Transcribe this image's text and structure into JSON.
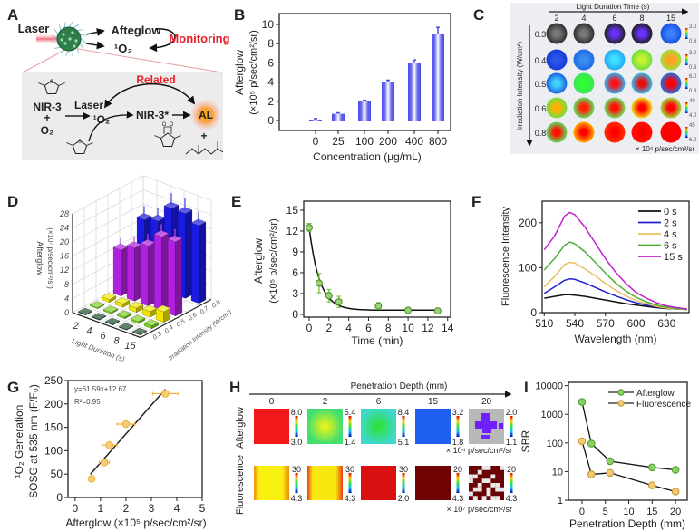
{
  "panel_labels": [
    "A",
    "B",
    "C",
    "D",
    "E",
    "F",
    "G",
    "H",
    "I"
  ],
  "schematic": {
    "laser": "Laser",
    "afterglow": "Afteglow",
    "singlet_oxygen": "¹O₂",
    "monitoring": "Monitoring",
    "related": "Related",
    "nir3": "NIR-3",
    "plus": "+",
    "oxygen": "O₂",
    "laser2": "Laser",
    "singlet_oxygen2": "¹O₂",
    "nir3_star": "NIR-3*",
    "al": "AL",
    "plus2": "+",
    "sulfur": "S",
    "oxygen_atom": "O",
    "accent_red": "#e8202a",
    "nanoparticle_color": "#2f7d4a"
  },
  "chart_data": [
    {
      "panel": "B",
      "type": "bar",
      "categories": [
        "0",
        "25",
        "100",
        "200",
        "400",
        "800"
      ],
      "values": [
        0.1,
        0.7,
        2.0,
        4.0,
        6.0,
        9.0
      ],
      "errors": [
        0.1,
        0.1,
        0.1,
        0.2,
        0.3,
        0.7
      ],
      "ylabel": "Afterglow",
      "ylabel_unit": "(×10⁵ p/sec/cm²/sr)",
      "xlabel": "Concentration (μg/mL)",
      "ylim": [
        -1,
        11.1
      ],
      "yticks": [
        "0",
        "2",
        "4",
        "6",
        "8",
        "10"
      ],
      "color": "#4a4ae8"
    },
    {
      "panel": "C",
      "type": "heatmap",
      "xlabel": "Light Duration Time (s)",
      "columns": [
        "2",
        "4",
        "6",
        "8",
        "15"
      ],
      "ylabel": "Irradiation Intensity (W/cm²)",
      "rows": [
        "0.3",
        "0.4",
        "0.5",
        "0.6",
        "0.8"
      ],
      "colorbar_ranges": [
        [
          "3.0",
          "0.6"
        ],
        [
          "3.0",
          "0.6"
        ],
        [
          "6.0",
          "0.3"
        ],
        [
          "40",
          "4.0"
        ],
        [
          "45",
          "6.0"
        ]
      ],
      "unit": "× 10⁴ p/sec/cm²/sr",
      "cell_colors": [
        [
          [
            "#2e2e2e",
            "#777777"
          ],
          [
            "#2e2e2e",
            "#777777"
          ],
          [
            "#222222",
            "#6a30ff"
          ],
          [
            "#1e1e1e",
            "#6a30ff"
          ],
          [
            "#1a4fe0",
            "#3a80ff"
          ]
        ],
        [
          [
            "#1a3ad8",
            "#2a55e8"
          ],
          [
            "#1f6ae8",
            "#3a8cf0"
          ],
          [
            "#20a8f0",
            "#40e0ff"
          ],
          [
            "#6ce040",
            "#c8f030"
          ],
          [
            "#a0e040",
            "#ffa020"
          ]
        ],
        [
          [
            "#1a60e0",
            "#40d0ff"
          ],
          [
            "#40e060",
            "#30ff30"
          ],
          [
            "#30b0f0",
            "#ff1010"
          ],
          [
            "#30c0f0",
            "#e80c0c"
          ],
          [
            "#2070e0",
            "#ff0000"
          ]
        ],
        [
          [
            "#70e040",
            "#ffb000"
          ],
          [
            "#60e060",
            "#ff2000"
          ],
          [
            "#70e060",
            "#ff1000"
          ],
          [
            "#f0e020",
            "#ff0000"
          ],
          [
            "#a0e040",
            "#ff0000"
          ]
        ],
        [
          [
            "#60e060",
            "#ff1000"
          ],
          [
            "#ffb000",
            "#ff0000"
          ],
          [
            "#ff3000",
            "#ff0000"
          ],
          [
            "#ff1000",
            "#ff0000"
          ],
          [
            "#ff0000",
            "#ff0000"
          ]
        ]
      ]
    },
    {
      "panel": "D",
      "type": "bar3d",
      "categories": [
        "2",
        "4",
        "6",
        "8",
        "15"
      ],
      "xlabel": "Light Duration (s)",
      "depth_label": "Irradiation Intensity (W/cm²)",
      "depth_ticks": [
        "0.3",
        "0.4",
        "0.5",
        "0.6",
        "0.7",
        "0.8"
      ],
      "zlabel": "Afterglow",
      "zlabel_unit": "(×10⁷ p/sec/cm²/sr)",
      "zlim": [
        0,
        28
      ],
      "zticks": [
        "0",
        "4",
        "8",
        "12",
        "16",
        "20",
        "24",
        "28"
      ],
      "series": [
        {
          "intensity": 0.3,
          "color": "#1e4d2b",
          "values": [
            0.2,
            0.2,
            0.2,
            0.2,
            0.2
          ]
        },
        {
          "intensity": 0.4,
          "color": "#7ed321",
          "values": [
            0.3,
            0.4,
            0.5,
            0.6,
            0.8
          ]
        },
        {
          "intensity": 0.5,
          "color": "#f2e600",
          "values": [
            0.8,
            1.0,
            1.2,
            1.6,
            3.0
          ]
        },
        {
          "intensity": 0.6,
          "color": "#b020e0",
          "values": [
            13,
            15,
            17,
            21,
            21
          ],
          "errors": [
            1.0,
            1.0,
            1.0,
            1.2,
            1.2
          ]
        },
        {
          "intensity": 0.8,
          "color": "#1a1ae0",
          "values": [
            18,
            19,
            24,
            24,
            22
          ],
          "errors": [
            1.5,
            1.5,
            2.0,
            2.0,
            1.5
          ]
        }
      ]
    },
    {
      "panel": "E",
      "type": "scatter",
      "x": [
        0,
        1,
        2,
        3,
        7,
        10,
        13
      ],
      "y": [
        12.5,
        4.5,
        2.7,
        1.8,
        1.2,
        0.6,
        0.5
      ],
      "errors": [
        0.6,
        1.4,
        0.9,
        0.8,
        0.5,
        0.3,
        0.3
      ],
      "xlim": [
        -0.55,
        14.3
      ],
      "ylim": [
        -0.4,
        16.3
      ],
      "xticks": [
        "0",
        "2",
        "4",
        "6",
        "8",
        "10",
        "12",
        "14"
      ],
      "yticks": [
        "0",
        "3",
        "6",
        "9",
        "12",
        "15"
      ],
      "ylabel": "Afterglow",
      "ylabel_unit": "(×10⁵ p/sec/cm²/sr)",
      "xlabel": "Time (min)",
      "color": "#6cc23a"
    },
    {
      "panel": "F",
      "type": "line",
      "x": [
        510,
        520,
        530,
        535,
        540,
        550,
        560,
        570,
        580,
        590,
        600,
        610,
        620,
        630,
        640,
        650
      ],
      "series": [
        {
          "name": "0 s",
          "color": "#111111",
          "values": [
            32,
            36,
            40,
            40,
            39,
            36,
            32,
            28,
            24,
            20,
            17,
            14,
            11,
            9,
            8,
            7
          ]
        },
        {
          "name": "2 s",
          "color": "#1f1fd0",
          "values": [
            43,
            57,
            72,
            75,
            74,
            66,
            56,
            46,
            37,
            29,
            22,
            17,
            13,
            10,
            8,
            7
          ]
        },
        {
          "name": "4 s",
          "color": "#e8c060",
          "values": [
            57,
            80,
            107,
            112,
            110,
            97,
            82,
            65,
            50,
            37,
            27,
            20,
            14,
            10,
            8,
            7
          ]
        },
        {
          "name": "6 s",
          "color": "#4caf30",
          "values": [
            95,
            120,
            150,
            157,
            153,
            135,
            112,
            88,
            66,
            48,
            34,
            24,
            17,
            12,
            9,
            7
          ]
        },
        {
          "name": "15 s",
          "color": "#c020d0",
          "values": [
            140,
            170,
            215,
            223,
            218,
            190,
            155,
            120,
            90,
            65,
            45,
            32,
            22,
            15,
            11,
            8
          ]
        }
      ],
      "xlim": [
        508,
        652
      ],
      "ylim": [
        0,
        248
      ],
      "xticks": [
        "510",
        "540",
        "570",
        "600",
        "630"
      ],
      "yticks": [
        "0",
        "100",
        "200"
      ],
      "ylabel": "Fluorescence Intensity",
      "xlabel": "Wavelength (nm)",
      "legend": "top-right"
    },
    {
      "panel": "G",
      "type": "scatter",
      "x": [
        0.65,
        1.15,
        1.35,
        2.0,
        3.55
      ],
      "y": [
        40,
        75,
        112,
        157,
        222
      ],
      "xerr": [
        0.1,
        0.2,
        0.3,
        0.35,
        0.5
      ],
      "fit": {
        "slope": 61.59,
        "intercept": 12.67,
        "x_range": [
          0.6,
          3.55
        ]
      },
      "annotation": [
        "y=61.59x+12.67",
        "R²=0.95"
      ],
      "xlim": [
        -0.28,
        5
      ],
      "ylim": [
        0,
        250
      ],
      "xticks": [
        "0",
        "1",
        "2",
        "3",
        "4",
        "5"
      ],
      "yticks": [
        "0",
        "50",
        "100",
        "150",
        "200",
        "250"
      ],
      "ylabel": "¹O₂ Generation",
      "ylabel2": "SOSG at 535 nm (F/F₀)",
      "xlabel": "Afterglow (×10⁵ p/sec/cm²/sr)",
      "color": "#f0b030"
    },
    {
      "panel": "H",
      "type": "image_grid",
      "title": "Penetration Depth (mm)",
      "columns": [
        "0",
        "2",
        "6",
        "15",
        "20"
      ],
      "rows": [
        {
          "label": "Afterglow",
          "unit": "× 10⁴ p/sec/cm²/sr",
          "colorbar_ranges": [
            [
              "8.0",
              "3.0"
            ],
            [
              "5.4",
              "1.4"
            ],
            [
              "8.4",
              "5.1"
            ],
            [
              "3.2",
              "1.8"
            ],
            [
              "2.0",
              "1.1"
            ]
          ],
          "cells": [
            {
              "style": "flat",
              "colors": [
                "#f01818",
                "#f01818"
              ]
            },
            {
              "style": "radial",
              "colors": [
                "#40e070",
                "#e0f020"
              ]
            },
            {
              "style": "radial",
              "colors": [
                "#40d8c8",
                "#30e040"
              ]
            },
            {
              "style": "flat",
              "colors": [
                "#2060f0",
                "#2a7af0"
              ]
            },
            {
              "style": "cross",
              "colors": [
                "#b8b8b8",
                "#7020ff"
              ]
            }
          ]
        },
        {
          "label": "Fluorescence",
          "unit": "× 10⁷ p/sec/cm²/sr",
          "colorbar_ranges": [
            [
              "30",
              "4.3"
            ],
            [
              "30",
              "4.3"
            ],
            [
              "30",
              "2.0"
            ],
            [
              "20",
              "4.3"
            ],
            [
              "20",
              "4.3"
            ]
          ],
          "cells": [
            {
              "style": "edge",
              "colors": [
                "#f8f010",
                "#f08a10"
              ]
            },
            {
              "style": "edge",
              "colors": [
                "#f8e810",
                "#e84010"
              ]
            },
            {
              "style": "flat",
              "colors": [
                "#d81010",
                "#e02020"
              ]
            },
            {
              "style": "flat",
              "colors": [
                "#700404",
                "#760808"
              ]
            },
            {
              "style": "noise",
              "colors": [
                "#6a0404",
                "#e8e8e8"
              ]
            }
          ]
        }
      ]
    },
    {
      "panel": "I",
      "type": "line",
      "yscale": "log",
      "x": [
        0,
        2,
        6,
        15,
        20
      ],
      "series": [
        {
          "name": "Afterglow",
          "color": "#60c030",
          "values": [
            2700,
            95,
            23,
            14,
            11.5
          ]
        },
        {
          "name": "Fluorescence",
          "color": "#f0b840",
          "values": [
            115,
            8,
            9,
            3.3,
            2
          ]
        }
      ],
      "xlim": [
        -2.9,
        22.5
      ],
      "ylim": [
        1,
        13000
      ],
      "xticks": [
        "0",
        "5",
        "10",
        "15",
        "20"
      ],
      "yticks": [
        "1",
        "10",
        "100",
        "1000",
        "10000"
      ],
      "ylabel": "SBR",
      "xlabel": "Penetration Depth (mm)",
      "legend": "top-right"
    }
  ]
}
